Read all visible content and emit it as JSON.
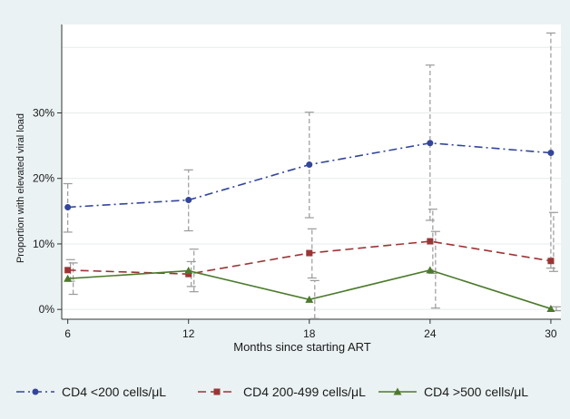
{
  "chart_data": {
    "type": "line",
    "xlabel": "Months since starting ART",
    "ylabel": "Proportion with elevated viral load",
    "x": [
      6,
      12,
      18,
      24,
      30
    ],
    "x_ticks": [
      "6",
      "12",
      "18",
      "24",
      "30"
    ],
    "y_ticks": [
      "0%",
      "10%",
      "20%",
      "30%"
    ],
    "y_tick_values": [
      0,
      10,
      20,
      30
    ],
    "xlim": [
      5.7,
      30.5
    ],
    "ylim": [
      -1.5,
      43.5
    ],
    "grid": "horizontal",
    "legend_position": "bottom",
    "series": [
      {
        "name": "CD4 <200 cells/μL",
        "color": "#33469a",
        "line_style": "dash-dot",
        "marker": "circle",
        "values": [
          15.6,
          16.7,
          22.1,
          25.4,
          23.9
        ],
        "ci_low": [
          11.8,
          12.0,
          14.0,
          13.6,
          6.3
        ],
        "ci_high": [
          19.2,
          21.3,
          30.1,
          37.3,
          42.2
        ]
      },
      {
        "name": "CD4 200-499 cells/μL",
        "color": "#9b3535",
        "line_style": "dashed",
        "marker": "square",
        "values": [
          6.0,
          5.4,
          8.6,
          10.4,
          7.4
        ],
        "ci_low": [
          4.3,
          3.5,
          4.8,
          5.5,
          5.8
        ],
        "ci_high": [
          7.6,
          7.3,
          12.3,
          15.3,
          14.8
        ]
      },
      {
        "name": "CD4 >500 cells/μL",
        "color": "#4c7a2c",
        "line_style": "solid",
        "marker": "triangle",
        "values": [
          4.7,
          5.9,
          1.5,
          6.0,
          0.1
        ],
        "ci_low": [
          2.3,
          2.7,
          -1.4,
          0.2,
          -0.2
        ],
        "ci_high": [
          7.1,
          9.2,
          4.4,
          11.9,
          0.4
        ]
      }
    ]
  }
}
